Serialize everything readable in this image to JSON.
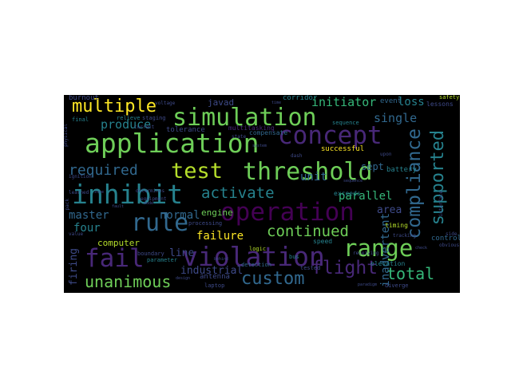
{
  "colors": {
    "background": "#000000",
    "palette": [
      "#440154",
      "#482878",
      "#3e4a89",
      "#31688e",
      "#26828e",
      "#1f9e89",
      "#35b779",
      "#6ece58",
      "#b5de2b",
      "#fde725"
    ]
  },
  "words": [
    {
      "text": "simulation",
      "color": "#6ece58"
    },
    {
      "text": "application",
      "color": "#6ece58"
    },
    {
      "text": "concept",
      "color": "#482878"
    },
    {
      "text": "threshold",
      "color": "#6ece58"
    },
    {
      "text": "inhibit",
      "color": "#26828e"
    },
    {
      "text": "operation",
      "color": "#440154"
    },
    {
      "text": "rule",
      "color": "#31688e"
    },
    {
      "text": "violation",
      "color": "#482878"
    },
    {
      "text": "fail",
      "color": "#482878"
    },
    {
      "text": "range",
      "color": "#6ece58"
    },
    {
      "text": "test",
      "color": "#b5de2b"
    },
    {
      "text": "multiple",
      "color": "#fde725"
    },
    {
      "text": "compliance",
      "color": "#31688e"
    },
    {
      "text": "supported",
      "color": "#26828e"
    },
    {
      "text": "flight",
      "color": "#482878"
    },
    {
      "text": "custom",
      "color": "#31688e"
    },
    {
      "text": "unanimous",
      "color": "#6ece58"
    },
    {
      "text": "total",
      "color": "#35b779"
    },
    {
      "text": "continued",
      "color": "#6ece58"
    },
    {
      "text": "activate",
      "color": "#26828e"
    },
    {
      "text": "required",
      "color": "#31688e"
    },
    {
      "text": "produce",
      "color": "#26828e"
    },
    {
      "text": "initiator",
      "color": "#35b779"
    },
    {
      "text": "single",
      "color": "#31688e"
    },
    {
      "text": "unit",
      "color": "#31688e"
    },
    {
      "text": "parallel",
      "color": "#35b779"
    },
    {
      "text": "area",
      "color": "#3e4a89"
    },
    {
      "text": "normal",
      "color": "#31688e"
    },
    {
      "text": "master",
      "color": "#31688e"
    },
    {
      "text": "four",
      "color": "#26828e"
    },
    {
      "text": "failure",
      "color": "#fde725"
    },
    {
      "text": "line",
      "color": "#3e4a89"
    },
    {
      "text": "industrial",
      "color": "#3e4a89"
    },
    {
      "text": "firing",
      "color": "#3e4a89"
    },
    {
      "text": "inadvertent",
      "color": "#31688e"
    },
    {
      "text": "loss",
      "color": "#26828e"
    },
    {
      "text": "sept",
      "color": "#31688e"
    },
    {
      "text": "computer",
      "color": "#b5de2b"
    },
    {
      "text": "engine",
      "color": "#6ece58"
    },
    {
      "text": "javad",
      "color": "#3e4a89"
    },
    {
      "text": "burnout",
      "color": "#3e4a89"
    },
    {
      "text": "antenna",
      "color": "#3e4a89"
    },
    {
      "text": "corridor",
      "color": "#26828e"
    },
    {
      "text": "event",
      "color": "#31688e"
    },
    {
      "text": "battery",
      "color": "#26828e"
    },
    {
      "text": "successful",
      "color": "#fde725"
    },
    {
      "text": "exceeds",
      "color": "#26828e"
    },
    {
      "text": "tolerance",
      "color": "#3e4a89"
    },
    {
      "text": "compensate",
      "color": "#31688e"
    },
    {
      "text": "multitasking",
      "color": "#482878"
    },
    {
      "text": "timing",
      "color": "#b5de2b"
    },
    {
      "text": "control",
      "color": "#31688e"
    },
    {
      "text": "detection",
      "color": "#31688e"
    },
    {
      "text": "tested",
      "color": "#3e4a89"
    },
    {
      "text": "speed",
      "color": "#26828e"
    },
    {
      "text": "elevation",
      "color": "#26828e"
    },
    {
      "text": "diverge",
      "color": "#3e4a89"
    },
    {
      "text": "laptop",
      "color": "#3e4a89"
    },
    {
      "text": "boundary",
      "color": "#3e4a89"
    },
    {
      "text": "parameter",
      "color": "#26828e"
    },
    {
      "text": "logic",
      "color": "#b5de2b"
    },
    {
      "text": "bus",
      "color": "#26828e"
    },
    {
      "text": "lessons",
      "color": "#3e4a89"
    },
    {
      "text": "safety",
      "color": "#b5de2b"
    },
    {
      "text": "staging",
      "color": "#3e4a89"
    },
    {
      "text": "relieve",
      "color": "#26828e"
    },
    {
      "text": "final",
      "color": "#26828e"
    },
    {
      "text": "current",
      "color": "#3e4a89"
    },
    {
      "text": "sequence",
      "color": "#26828e"
    },
    {
      "text": "processing",
      "color": "#3e4a89"
    },
    {
      "text": "ignition",
      "color": "#3e4a89"
    },
    {
      "text": "learned",
      "color": "#3e4a89"
    },
    {
      "text": "value",
      "color": "#3e4a89"
    },
    {
      "text": "tracking",
      "color": "#3e4a89"
    },
    {
      "text": "upon",
      "color": "#3e4a89"
    },
    {
      "text": "receiving",
      "color": "#3e4a89"
    },
    {
      "text": "obvious",
      "color": "#3e4a89"
    },
    {
      "text": "side",
      "color": "#3e4a89"
    },
    {
      "text": "voltage",
      "color": "#3e4a89"
    },
    {
      "text": "equipment",
      "color": "#3e4a89"
    },
    {
      "text": "interface",
      "color": "#3e4a89"
    },
    {
      "text": "physical",
      "color": "#3e4a89"
    },
    {
      "text": "dash",
      "color": "#3e4a89"
    },
    {
      "text": "state",
      "color": "#3e4a89"
    },
    {
      "text": "paradigm",
      "color": "#3e4a89"
    },
    {
      "text": "pack",
      "color": "#3e4a89"
    },
    {
      "text": "determines",
      "color": "#3e4a89"
    },
    {
      "text": "mode",
      "color": "#3e4a89"
    },
    {
      "text": "system",
      "color": "#3e4a89"
    },
    {
      "text": "time",
      "color": "#3e4a89"
    },
    {
      "text": "check",
      "color": "#3e4a89"
    },
    {
      "text": "sequence",
      "color": "#3e4a89"
    },
    {
      "text": "behind",
      "color": "#3e4a89"
    },
    {
      "text": "fault",
      "color": "#3e4a89"
    },
    {
      "text": "zone",
      "color": "#3e4a89"
    },
    {
      "text": "design",
      "color": "#3e4a89"
    }
  ]
}
